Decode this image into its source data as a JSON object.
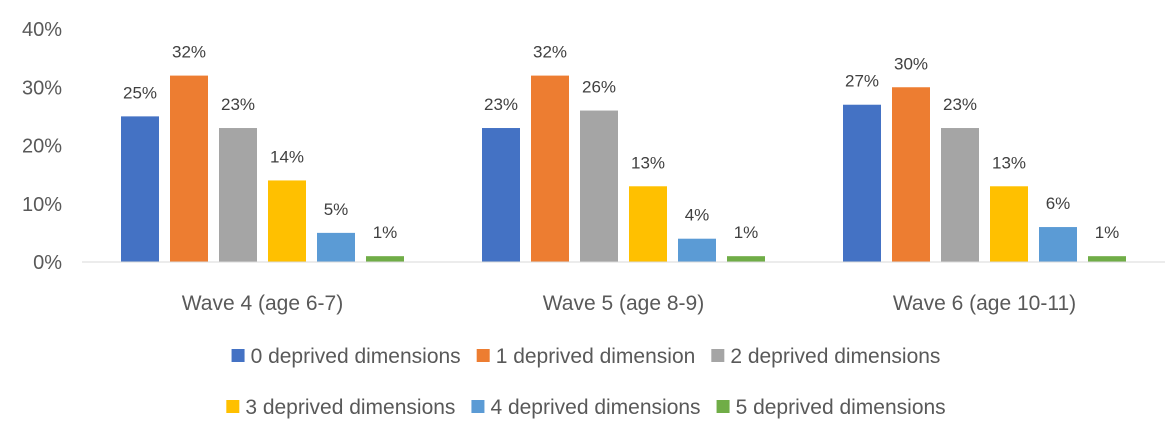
{
  "chart_data": {
    "type": "bar",
    "categories": [
      "Wave 4 (age 6-7)",
      "Wave 5 (age 8-9)",
      "Wave 6 (age 10-11)"
    ],
    "series": [
      {
        "name": "0 deprived dimensions",
        "values": [
          25,
          23,
          27
        ],
        "labels": [
          "25%",
          "23%",
          "27%"
        ],
        "color": "#4472C4"
      },
      {
        "name": "1 deprived dimension",
        "values": [
          32,
          32,
          30
        ],
        "labels": [
          "32%",
          "32%",
          "30%"
        ],
        "color": "#ED7D31"
      },
      {
        "name": "2 deprived dimensions",
        "values": [
          23,
          26,
          23
        ],
        "labels": [
          "23%",
          "26%",
          "23%"
        ],
        "color": "#A5A5A5"
      },
      {
        "name": "3 deprived dimensions",
        "values": [
          14,
          13,
          13
        ],
        "labels": [
          "14%",
          "13%",
          "13%"
        ],
        "color": "#FFC000"
      },
      {
        "name": "4 deprived dimensions",
        "values": [
          5,
          4,
          6
        ],
        "labels": [
          "5%",
          "4%",
          "6%"
        ],
        "color": "#5B9BD5"
      },
      {
        "name": "5 deprived dimensions",
        "values": [
          1,
          1,
          1
        ],
        "labels": [
          "1%",
          "1%",
          "1%"
        ],
        "color": "#70AD47"
      }
    ],
    "ylim": [
      0,
      40
    ],
    "yticks": [
      "0%",
      "10%",
      "20%",
      "30%",
      "40%"
    ],
    "title": "",
    "xlabel": "",
    "ylabel": "",
    "grid": false,
    "legend_position": "bottom"
  }
}
